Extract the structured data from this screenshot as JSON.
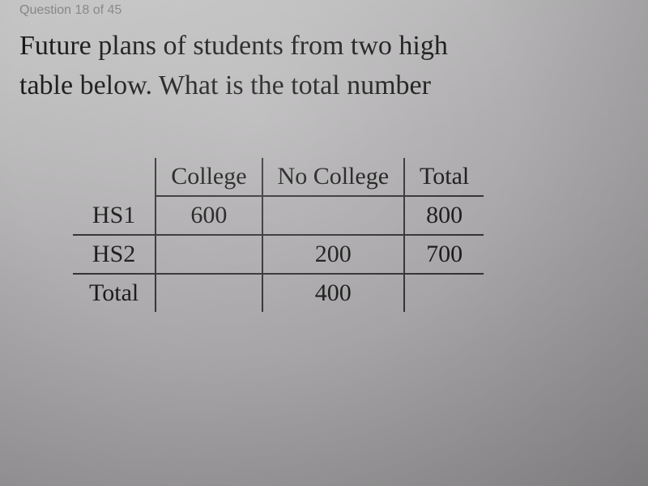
{
  "page_indicator": "Question 18 of 45",
  "question": {
    "line1": "Future plans of students from two high",
    "line2": "table below. What is the total number"
  },
  "table": {
    "columns": [
      "",
      "College",
      "No College",
      "Total"
    ],
    "rows": [
      {
        "label": "HS1",
        "college": "600",
        "no_college": "",
        "total": "800"
      },
      {
        "label": "HS2",
        "college": "",
        "no_college": "200",
        "total": "700"
      },
      {
        "label": "Total",
        "college": "",
        "no_college": "400",
        "total": ""
      }
    ],
    "border_color": "#333333",
    "text_color": "#1a1a1a",
    "cell_fontsize": 30
  },
  "colors": {
    "background_light": "#c8c8c8",
    "background_dark": "#989698",
    "faded_text": "#868686"
  }
}
